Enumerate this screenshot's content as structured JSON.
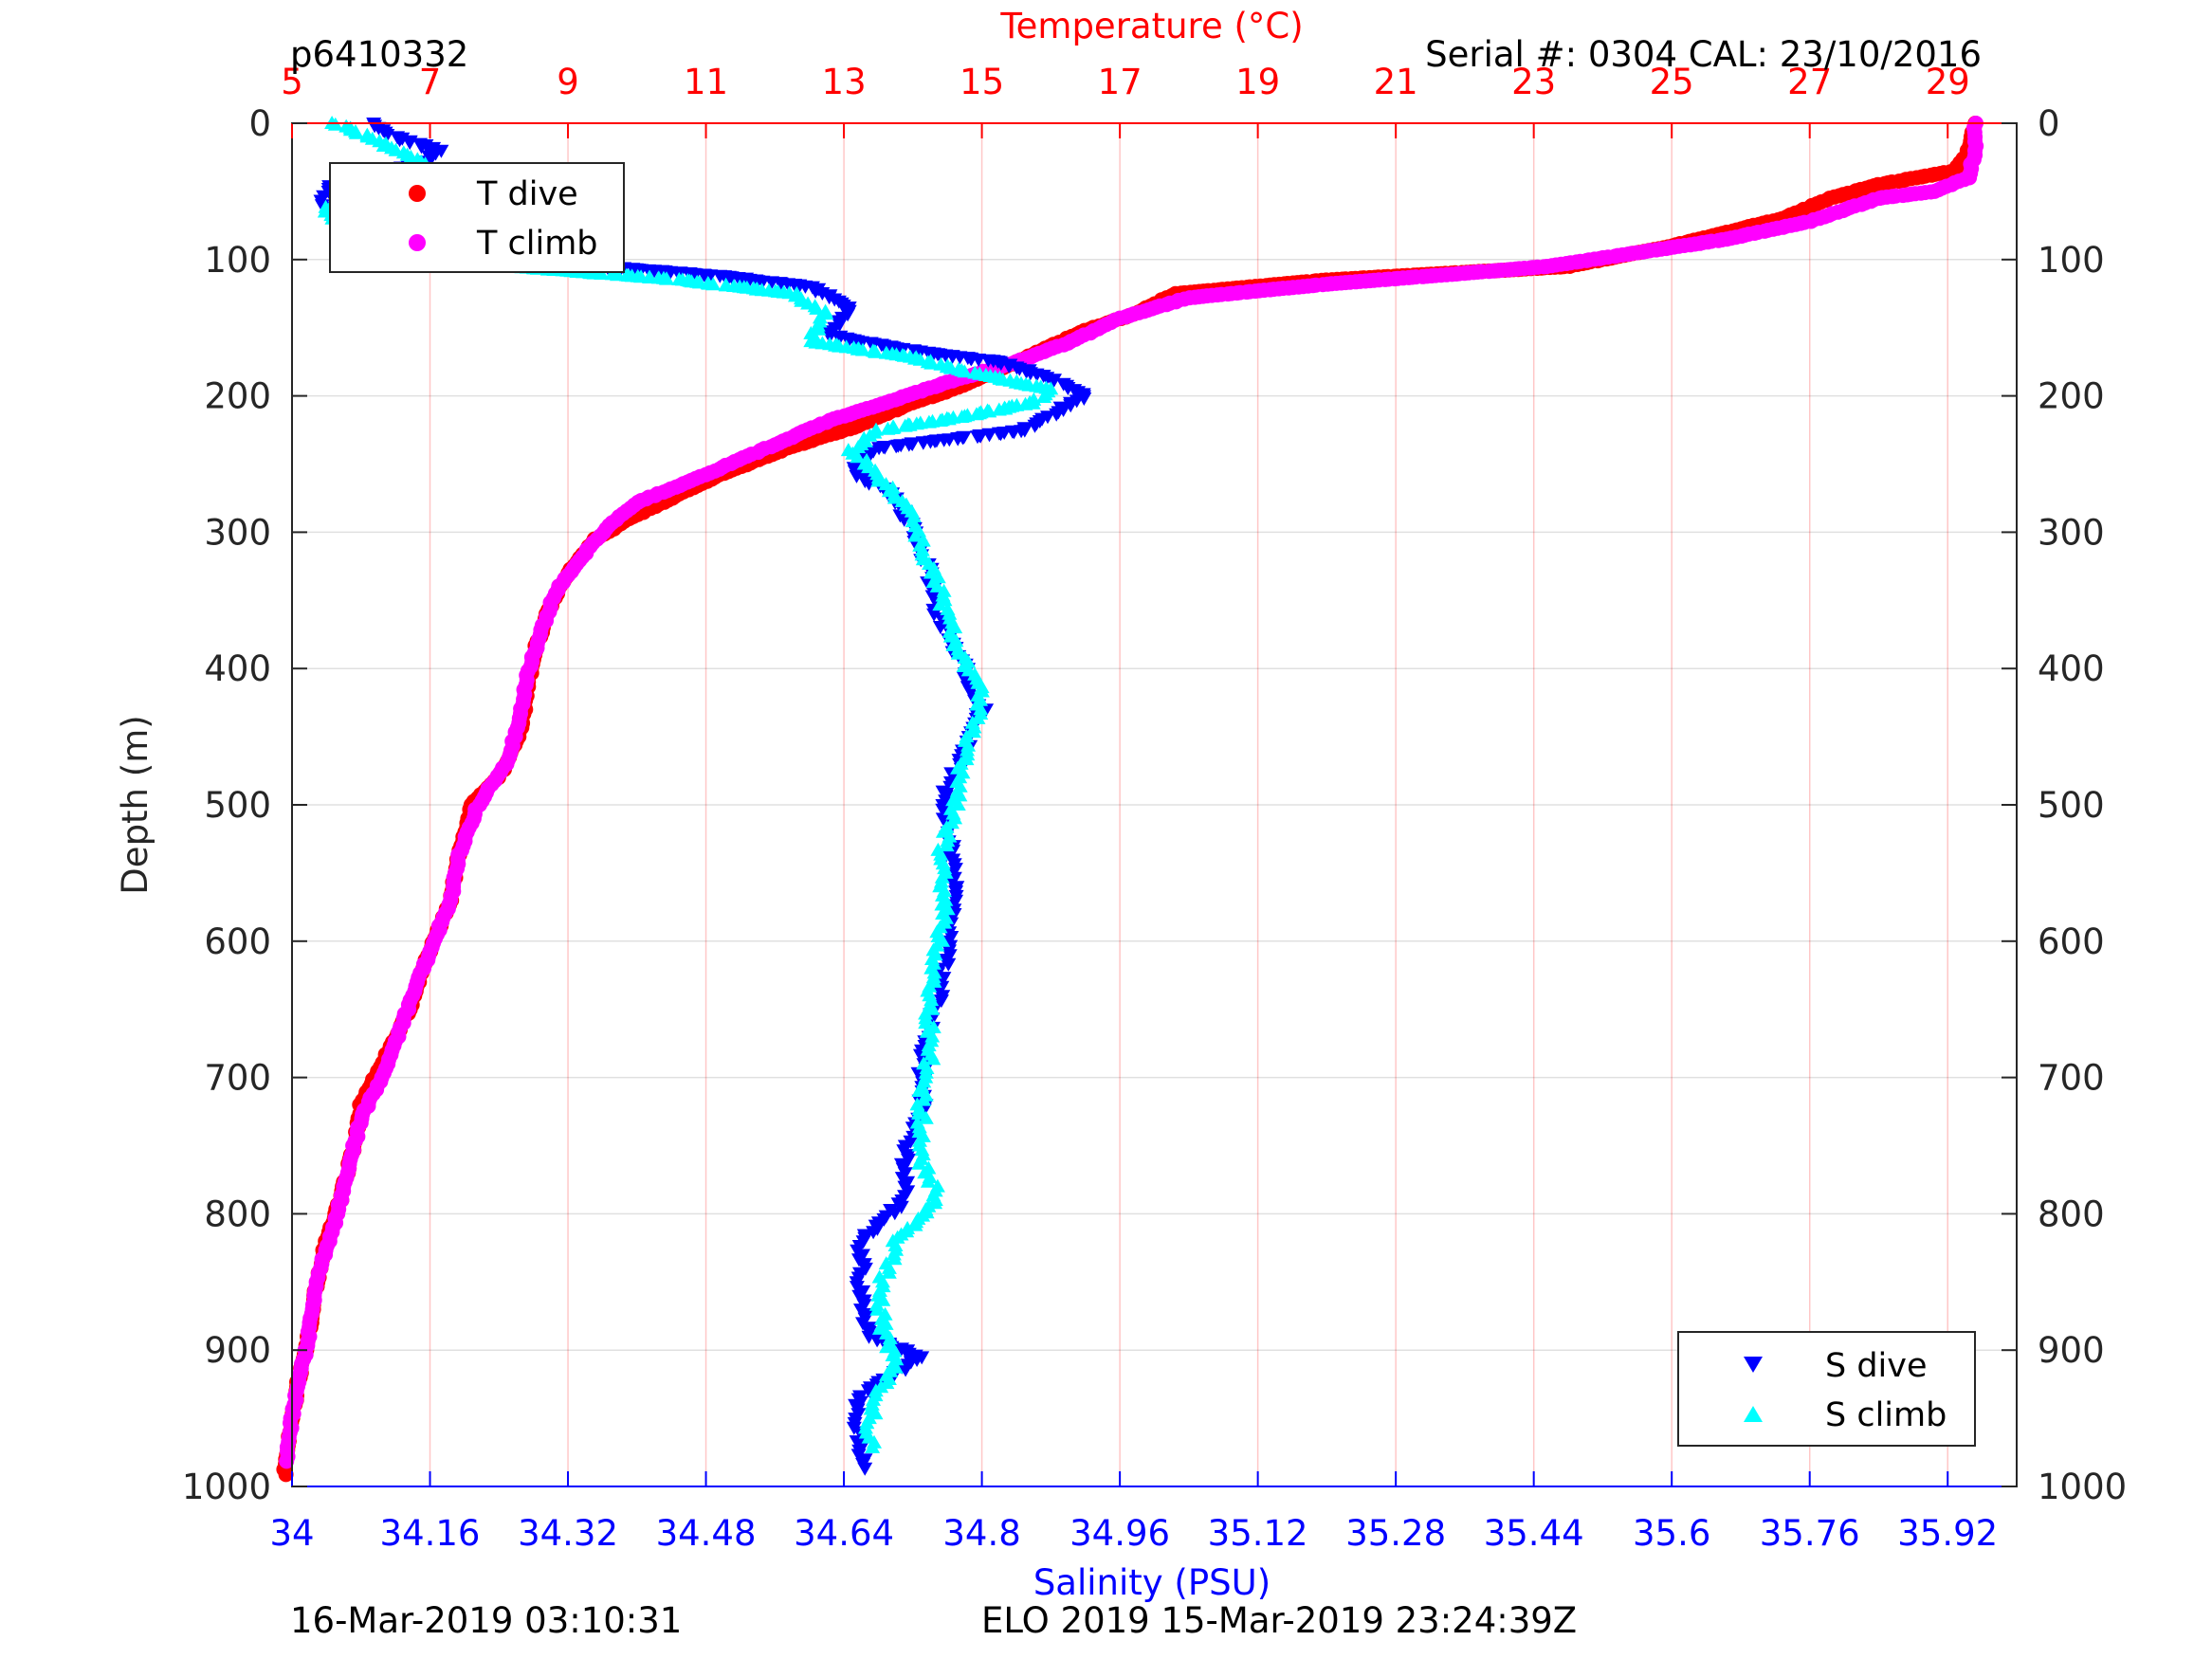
{
  "header": {
    "left": "p6410332",
    "right": "Serial #: 0304  CAL: 23/10/2016"
  },
  "footer": {
    "left": "16-Mar-2019 03:10:31",
    "right": "ELO 2019 15-Mar-2019 23:24:39Z"
  },
  "colors": {
    "temperature_axis": "#ff0000",
    "salinity_axis": "#0000ff",
    "t_dive": "#ff0000",
    "t_climb": "#ff00ff",
    "s_dive": "#0000ff",
    "s_climb": "#00ffff"
  },
  "chart_data": {
    "type": "scatter",
    "title": "",
    "temperature_axis": {
      "label": "Temperature (°C)",
      "position": "top",
      "range": [
        5,
        30
      ],
      "ticks": [
        5,
        7,
        9,
        11,
        13,
        15,
        17,
        19,
        21,
        23,
        25,
        27,
        29
      ]
    },
    "salinity_axis": {
      "label": "Salinity (PSU)",
      "position": "bottom",
      "range": [
        34.0,
        36.0
      ],
      "ticks": [
        "34",
        "34.16",
        "34.32",
        "34.48",
        "34.64",
        "34.8",
        "34.96",
        "35.12",
        "35.28",
        "35.44",
        "35.6",
        "35.76",
        "35.92"
      ]
    },
    "depth_axis": {
      "label": "Depth (m)",
      "range": [
        0,
        1000
      ],
      "reversed": true,
      "ticks": [
        0,
        100,
        200,
        300,
        400,
        500,
        600,
        700,
        800,
        900,
        1000
      ]
    },
    "grid": "vertical red lines at temperature ticks, horizontal gray lines at depth ticks",
    "legends": [
      {
        "placement": "top-left",
        "entries": [
          "T dive",
          "T climb"
        ]
      },
      {
        "placement": "bottom-right",
        "entries": [
          "S dive",
          "S climb"
        ]
      }
    ],
    "series": [
      {
        "name": "T dive",
        "axis": "temperature",
        "marker": "dot",
        "color": "#ff0000",
        "points": [
          [
            29.4,
            0
          ],
          [
            29.3,
            20
          ],
          [
            29.1,
            35
          ],
          [
            28.0,
            45
          ],
          [
            27.3,
            55
          ],
          [
            26.6,
            70
          ],
          [
            25.0,
            90
          ],
          [
            23.5,
            105
          ],
          [
            22.5,
            108
          ],
          [
            20.0,
            115
          ],
          [
            17.8,
            125
          ],
          [
            17.2,
            140
          ],
          [
            16.5,
            152
          ],
          [
            15.8,
            168
          ],
          [
            15.2,
            182
          ],
          [
            14.6,
            195
          ],
          [
            14.0,
            205
          ],
          [
            13.2,
            222
          ],
          [
            12.2,
            238
          ],
          [
            11.2,
            258
          ],
          [
            10.5,
            275
          ],
          [
            9.9,
            290
          ],
          [
            9.4,
            305
          ],
          [
            9.0,
            330
          ],
          [
            8.7,
            360
          ],
          [
            8.5,
            390
          ],
          [
            8.4,
            420
          ],
          [
            8.3,
            450
          ],
          [
            8.0,
            480
          ],
          [
            7.6,
            500
          ],
          [
            7.4,
            540
          ],
          [
            7.3,
            570
          ],
          [
            6.9,
            620
          ],
          [
            6.7,
            650
          ],
          [
            6.4,
            680
          ],
          [
            6.0,
            720
          ],
          [
            5.9,
            750
          ],
          [
            5.7,
            790
          ],
          [
            5.5,
            820
          ],
          [
            5.4,
            840
          ],
          [
            5.3,
            870
          ],
          [
            5.2,
            900
          ],
          [
            5.1,
            920
          ],
          [
            5.0,
            950
          ],
          [
            4.9,
            980
          ],
          [
            4.9,
            995
          ]
        ]
      },
      {
        "name": "T climb",
        "axis": "temperature",
        "marker": "dot",
        "color": "#ff00ff",
        "points": [
          [
            29.4,
            0
          ],
          [
            29.4,
            20
          ],
          [
            29.3,
            40
          ],
          [
            28.8,
            50
          ],
          [
            28.0,
            55
          ],
          [
            27.0,
            72
          ],
          [
            25.8,
            85
          ],
          [
            24.5,
            95
          ],
          [
            23.2,
            105
          ],
          [
            22.0,
            110
          ],
          [
            20.0,
            118
          ],
          [
            18.0,
            128
          ],
          [
            17.0,
            143
          ],
          [
            16.3,
            160
          ],
          [
            15.5,
            175
          ],
          [
            14.5,
            190
          ],
          [
            13.6,
            205
          ],
          [
            12.8,
            218
          ],
          [
            11.8,
            240
          ],
          [
            10.8,
            262
          ],
          [
            10.0,
            278
          ],
          [
            9.6,
            295
          ],
          [
            9.2,
            318
          ],
          [
            8.8,
            345
          ],
          [
            8.6,
            375
          ],
          [
            8.4,
            405
          ],
          [
            8.3,
            440
          ],
          [
            8.1,
            470
          ],
          [
            7.7,
            500
          ],
          [
            7.4,
            540
          ],
          [
            7.3,
            570
          ],
          [
            6.9,
            620
          ],
          [
            6.6,
            660
          ],
          [
            6.3,
            700
          ],
          [
            6.0,
            730
          ],
          [
            5.8,
            770
          ],
          [
            5.6,
            810
          ],
          [
            5.4,
            840
          ],
          [
            5.3,
            870
          ],
          [
            5.2,
            900
          ],
          [
            5.1,
            920
          ],
          [
            5.0,
            950
          ],
          [
            4.9,
            985
          ]
        ]
      },
      {
        "name": "S dive",
        "axis": "salinity",
        "marker": "triangle-down",
        "color": "#0000ff",
        "points": [
          [
            34.09,
            0
          ],
          [
            34.12,
            10
          ],
          [
            34.17,
            20
          ],
          [
            34.15,
            30
          ],
          [
            34.06,
            40
          ],
          [
            34.04,
            50
          ],
          [
            34.03,
            60
          ],
          [
            34.06,
            70
          ],
          [
            34.15,
            85
          ],
          [
            34.28,
            95
          ],
          [
            34.36,
            105
          ],
          [
            34.5,
            112
          ],
          [
            34.6,
            120
          ],
          [
            34.65,
            135
          ],
          [
            34.62,
            155
          ],
          [
            34.7,
            165
          ],
          [
            34.82,
            175
          ],
          [
            34.87,
            185
          ],
          [
            34.92,
            200
          ],
          [
            34.85,
            225
          ],
          [
            34.68,
            238
          ],
          [
            34.65,
            255
          ],
          [
            34.7,
            275
          ],
          [
            34.72,
            300
          ],
          [
            34.74,
            330
          ],
          [
            34.75,
            360
          ],
          [
            34.78,
            400
          ],
          [
            34.8,
            430
          ],
          [
            34.78,
            460
          ],
          [
            34.76,
            490
          ],
          [
            34.76,
            520
          ],
          [
            34.77,
            560
          ],
          [
            34.76,
            600
          ],
          [
            34.75,
            640
          ],
          [
            34.73,
            680
          ],
          [
            34.73,
            720
          ],
          [
            34.71,
            760
          ],
          [
            34.71,
            790
          ],
          [
            34.66,
            820
          ],
          [
            34.66,
            860
          ],
          [
            34.67,
            890
          ],
          [
            34.73,
            905
          ],
          [
            34.68,
            925
          ],
          [
            34.65,
            940
          ],
          [
            34.66,
            970
          ],
          [
            34.66,
            990
          ]
        ]
      },
      {
        "name": "S climb",
        "axis": "salinity",
        "marker": "triangle-up",
        "color": "#00ffff",
        "points": [
          [
            34.05,
            0
          ],
          [
            34.09,
            10
          ],
          [
            34.12,
            20
          ],
          [
            34.15,
            30
          ],
          [
            34.14,
            45
          ],
          [
            34.05,
            55
          ],
          [
            34.04,
            65
          ],
          [
            34.06,
            80
          ],
          [
            34.12,
            95
          ],
          [
            34.25,
            105
          ],
          [
            34.45,
            115
          ],
          [
            34.58,
            125
          ],
          [
            34.62,
            140
          ],
          [
            34.6,
            160
          ],
          [
            34.72,
            172
          ],
          [
            34.8,
            185
          ],
          [
            34.88,
            195
          ],
          [
            34.86,
            205
          ],
          [
            34.78,
            215
          ],
          [
            34.68,
            225
          ],
          [
            34.65,
            240
          ],
          [
            34.68,
            260
          ],
          [
            34.72,
            285
          ],
          [
            34.73,
            310
          ],
          [
            34.75,
            340
          ],
          [
            34.77,
            380
          ],
          [
            34.8,
            420
          ],
          [
            34.78,
            460
          ],
          [
            34.77,
            500
          ],
          [
            34.75,
            540
          ],
          [
            34.76,
            570
          ],
          [
            34.75,
            600
          ],
          [
            34.74,
            640
          ],
          [
            34.74,
            680
          ],
          [
            34.73,
            720
          ],
          [
            34.73,
            760
          ],
          [
            34.75,
            790
          ],
          [
            34.7,
            820
          ],
          [
            34.68,
            860
          ],
          [
            34.69,
            895
          ],
          [
            34.7,
            910
          ],
          [
            34.68,
            930
          ],
          [
            34.67,
            950
          ],
          [
            34.67,
            975
          ]
        ]
      }
    ]
  }
}
